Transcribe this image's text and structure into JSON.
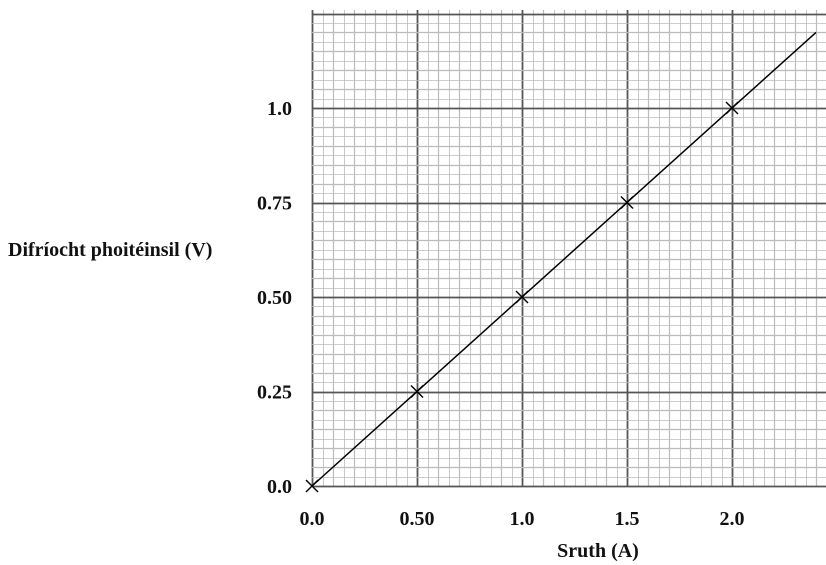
{
  "chart_data": {
    "type": "scatter",
    "xlabel": "Sruth (A)",
    "ylabel": "Difríocht phoitéinsil (V)",
    "x_ticks": [
      "0.0",
      "0.50",
      "1.0",
      "1.5",
      "2.0"
    ],
    "x_tick_values": [
      0,
      0.5,
      1.0,
      1.5,
      2.0
    ],
    "y_ticks": [
      "0.0",
      "0.25",
      "0.50",
      "0.75",
      "1.0"
    ],
    "y_tick_values": [
      0,
      0.25,
      0.5,
      0.75,
      1.0
    ],
    "xlim": [
      0,
      2.45
    ],
    "ylim": [
      0,
      1.25
    ],
    "grid": true,
    "points": [
      {
        "x": 0,
        "y": 0
      },
      {
        "x": 0.5,
        "y": 0.25
      },
      {
        "x": 1.0,
        "y": 0.5
      },
      {
        "x": 1.5,
        "y": 0.75
      },
      {
        "x": 2.0,
        "y": 1.0
      }
    ],
    "fit_line": {
      "slope": 0.5,
      "intercept": 0,
      "x_end": 2.4
    }
  }
}
